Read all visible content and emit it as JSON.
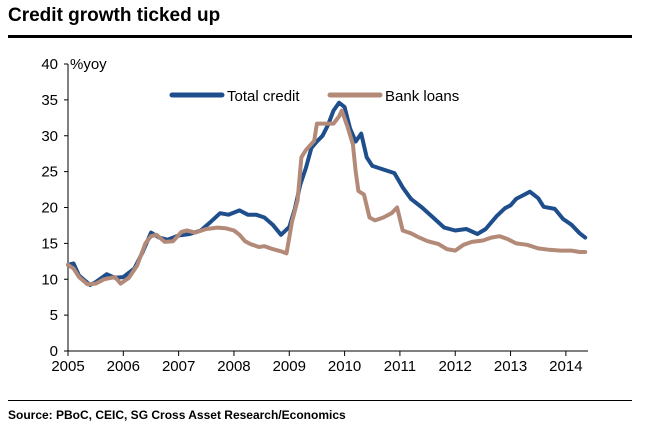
{
  "header": {
    "title": "Credit growth ticked up"
  },
  "footer": {
    "source": "Source: PBoC, CEIC, SG Cross Asset Research/Economics"
  },
  "chart_data": {
    "type": "line",
    "ylabel": "%yoy",
    "ylim": [
      0,
      40
    ],
    "yticks": [
      "0",
      "5",
      "10",
      "15",
      "20",
      "25",
      "30",
      "35",
      "40"
    ],
    "xlim": [
      2005,
      2014.4
    ],
    "xticks": [
      "2005",
      "2006",
      "2007",
      "2008",
      "2009",
      "2010",
      "2011",
      "2012",
      "2013",
      "2014"
    ],
    "legend_position": "top-center",
    "grid": false,
    "series": [
      {
        "name": "Total credit",
        "color": "#1f4e8c",
        "points": [
          [
            2005.0,
            12.0
          ],
          [
            2005.1,
            12.2
          ],
          [
            2005.2,
            10.5
          ],
          [
            2005.4,
            9.2
          ],
          [
            2005.5,
            9.6
          ],
          [
            2005.7,
            10.7
          ],
          [
            2005.85,
            10.2
          ],
          [
            2006.0,
            10.3
          ],
          [
            2006.2,
            11.5
          ],
          [
            2006.35,
            13.8
          ],
          [
            2006.5,
            16.5
          ],
          [
            2006.65,
            15.8
          ],
          [
            2006.8,
            15.5
          ],
          [
            2007.0,
            16.1
          ],
          [
            2007.2,
            16.3
          ],
          [
            2007.4,
            16.8
          ],
          [
            2007.55,
            17.8
          ],
          [
            2007.75,
            19.2
          ],
          [
            2007.9,
            19.0
          ],
          [
            2008.1,
            19.6
          ],
          [
            2008.25,
            19.0
          ],
          [
            2008.4,
            19.0
          ],
          [
            2008.55,
            18.6
          ],
          [
            2008.7,
            17.6
          ],
          [
            2008.85,
            16.2
          ],
          [
            2009.0,
            17.3
          ],
          [
            2009.1,
            19.8
          ],
          [
            2009.2,
            23.2
          ],
          [
            2009.3,
            25.5
          ],
          [
            2009.4,
            28.3
          ],
          [
            2009.5,
            29.2
          ],
          [
            2009.6,
            30.0
          ],
          [
            2009.7,
            31.5
          ],
          [
            2009.8,
            33.5
          ],
          [
            2009.9,
            34.6
          ],
          [
            2010.0,
            34.0
          ],
          [
            2010.1,
            31.0
          ],
          [
            2010.2,
            29.2
          ],
          [
            2010.3,
            30.3
          ],
          [
            2010.4,
            27.0
          ],
          [
            2010.5,
            25.8
          ],
          [
            2010.7,
            25.3
          ],
          [
            2010.9,
            24.8
          ],
          [
            2011.05,
            22.8
          ],
          [
            2011.2,
            21.2
          ],
          [
            2011.4,
            20.0
          ],
          [
            2011.6,
            18.6
          ],
          [
            2011.8,
            17.2
          ],
          [
            2012.0,
            16.8
          ],
          [
            2012.2,
            17.0
          ],
          [
            2012.4,
            16.3
          ],
          [
            2012.55,
            17.0
          ],
          [
            2012.75,
            18.8
          ],
          [
            2012.9,
            19.9
          ],
          [
            2013.0,
            20.3
          ],
          [
            2013.1,
            21.2
          ],
          [
            2013.25,
            21.8
          ],
          [
            2013.35,
            22.2
          ],
          [
            2013.5,
            21.3
          ],
          [
            2013.6,
            20.1
          ],
          [
            2013.8,
            19.8
          ],
          [
            2013.95,
            18.4
          ],
          [
            2014.1,
            17.6
          ],
          [
            2014.25,
            16.4
          ],
          [
            2014.35,
            15.8
          ]
        ]
      },
      {
        "name": "Bank loans",
        "color": "#b38a78",
        "points": [
          [
            2005.0,
            12.0
          ],
          [
            2005.1,
            11.5
          ],
          [
            2005.2,
            10.3
          ],
          [
            2005.35,
            9.3
          ],
          [
            2005.5,
            9.4
          ],
          [
            2005.65,
            10.0
          ],
          [
            2005.85,
            10.3
          ],
          [
            2005.95,
            9.4
          ],
          [
            2006.1,
            10.2
          ],
          [
            2006.25,
            11.9
          ],
          [
            2006.4,
            15.0
          ],
          [
            2006.5,
            16.0
          ],
          [
            2006.6,
            16.2
          ],
          [
            2006.75,
            15.2
          ],
          [
            2006.9,
            15.3
          ],
          [
            2007.05,
            16.6
          ],
          [
            2007.15,
            16.8
          ],
          [
            2007.3,
            16.5
          ],
          [
            2007.5,
            17.0
          ],
          [
            2007.7,
            17.2
          ],
          [
            2007.85,
            17.1
          ],
          [
            2008.0,
            16.8
          ],
          [
            2008.1,
            16.2
          ],
          [
            2008.2,
            15.3
          ],
          [
            2008.3,
            14.9
          ],
          [
            2008.45,
            14.5
          ],
          [
            2008.55,
            14.6
          ],
          [
            2008.7,
            14.2
          ],
          [
            2008.85,
            13.9
          ],
          [
            2008.95,
            13.6
          ],
          [
            2009.05,
            18.0
          ],
          [
            2009.15,
            21.0
          ],
          [
            2009.22,
            27.0
          ],
          [
            2009.3,
            28.0
          ],
          [
            2009.45,
            29.3
          ],
          [
            2009.5,
            31.7
          ],
          [
            2009.65,
            31.7
          ],
          [
            2009.8,
            31.7
          ],
          [
            2009.9,
            32.7
          ],
          [
            2009.95,
            33.5
          ],
          [
            2010.05,
            31.3
          ],
          [
            2010.15,
            28.8
          ],
          [
            2010.2,
            25.0
          ],
          [
            2010.25,
            22.3
          ],
          [
            2010.35,
            21.8
          ],
          [
            2010.45,
            18.6
          ],
          [
            2010.55,
            18.2
          ],
          [
            2010.7,
            18.6
          ],
          [
            2010.85,
            19.2
          ],
          [
            2010.95,
            20.0
          ],
          [
            2011.05,
            16.8
          ],
          [
            2011.2,
            16.4
          ],
          [
            2011.35,
            15.8
          ],
          [
            2011.5,
            15.3
          ],
          [
            2011.7,
            14.9
          ],
          [
            2011.85,
            14.2
          ],
          [
            2012.0,
            14.0
          ],
          [
            2012.15,
            14.8
          ],
          [
            2012.3,
            15.2
          ],
          [
            2012.5,
            15.4
          ],
          [
            2012.65,
            15.8
          ],
          [
            2012.8,
            16.0
          ],
          [
            2012.95,
            15.6
          ],
          [
            2013.1,
            15.0
          ],
          [
            2013.3,
            14.8
          ],
          [
            2013.5,
            14.3
          ],
          [
            2013.7,
            14.1
          ],
          [
            2013.9,
            14.0
          ],
          [
            2014.1,
            14.0
          ],
          [
            2014.25,
            13.8
          ],
          [
            2014.35,
            13.8
          ]
        ]
      }
    ]
  }
}
